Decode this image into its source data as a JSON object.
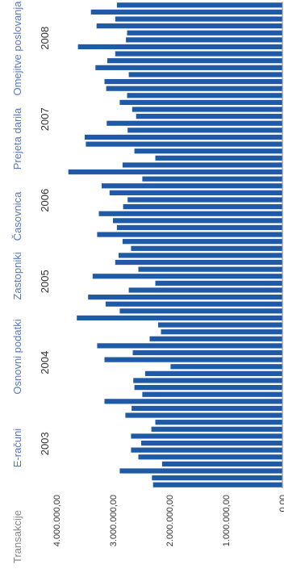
{
  "nav": {
    "label": "Transakcije",
    "items": [
      "E-računi",
      "Osnovni podatki",
      "Zastopniki",
      "Časovnica",
      "Prejeta darila",
      "Omejitve poslovanja"
    ]
  },
  "chart_data": {
    "type": "bar",
    "ylim": [
      0,
      4000000
    ],
    "yticks": [
      0,
      1000000,
      2000000,
      3000000,
      4000000
    ],
    "ytick_labels": [
      "0,00",
      "1.000.000,00",
      "2.000.000,00",
      "3.000.000,00",
      "4.000.000,00"
    ],
    "years": [
      "2003",
      "2004",
      "2005",
      "2006",
      "2007",
      "2008"
    ],
    "bar_color": "#1f5aa6",
    "values": [
      2290000,
      2310000,
      2880000,
      2130000,
      2550000,
      2680000,
      2500000,
      2680000,
      2320000,
      2250000,
      2780000,
      2670000,
      3150000,
      2480000,
      2620000,
      2640000,
      2430000,
      1980000,
      3150000,
      2650000,
      3280000,
      2350000,
      2150000,
      2200000,
      3640000,
      2880000,
      3130000,
      3440000,
      2720000,
      2250000,
      3360000,
      2550000,
      2960000,
      2900000,
      2680000,
      2830000,
      3280000,
      2930000,
      3000000,
      3250000,
      2820000,
      2740000,
      3060000,
      3200000,
      2480000,
      3790000,
      2830000,
      2250000,
      2620000,
      3480000,
      3500000,
      2740000,
      3110000,
      2590000,
      2660000,
      2880000,
      2750000,
      3120000,
      3150000,
      2720000,
      3310000,
      3100000,
      2960000,
      3620000,
      2770000,
      2750000,
      3290000,
      2960000,
      3390000,
      2930000
    ]
  }
}
